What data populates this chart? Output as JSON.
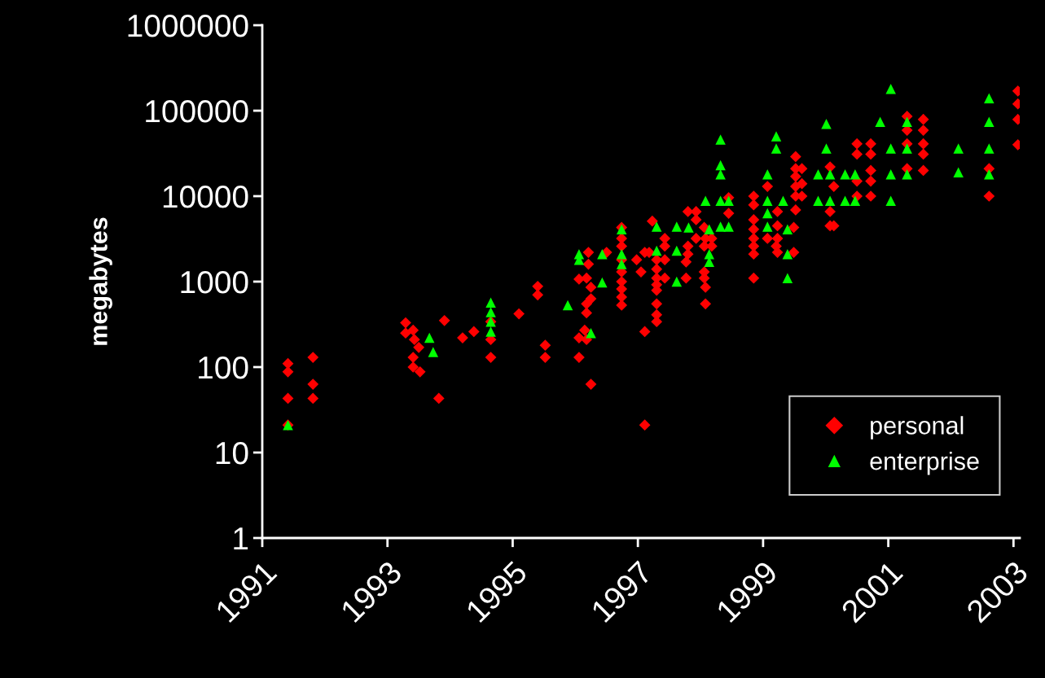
{
  "chart_data": {
    "type": "scatter",
    "ylabel": "megabytes",
    "log": "y",
    "legend": "bottom right",
    "grid": false,
    "xlim": [
      1991,
      2003.1
    ],
    "xticks": [
      1991,
      1993,
      1995,
      1997,
      1999,
      2001,
      2003
    ],
    "ylim": [
      1,
      1000000
    ],
    "yticks": [
      1,
      10,
      100,
      1000,
      10000,
      100000,
      1000000
    ],
    "series": [
      {
        "name": "personal",
        "color": "#ff0000",
        "marker": "diamond",
        "x": [
          1991.41,
          1991.41,
          1991.41,
          1991.41,
          1991.81,
          1991.81,
          1991.81,
          1993.29,
          1993.29,
          1993.41,
          1993.41,
          1993.41,
          1993.43,
          1993.5,
          1993.52,
          1993.82,
          1993.91,
          1994.2,
          1994.38,
          1994.65,
          1994.65,
          1994.65,
          1995.1,
          1995.4,
          1995.4,
          1995.52,
          1995.52,
          1996.06,
          1996.18,
          1996.21,
          1996.21,
          1996.25,
          1996.25,
          1996.18,
          1996.18,
          1996.15,
          1996.06,
          1996.18,
          1996.06,
          1996.25,
          1996.5,
          1996.74,
          1996.74,
          1996.74,
          1996.74,
          1996.74,
          1996.74,
          1996.74,
          1996.74,
          1996.74,
          1996.98,
          1997.05,
          1997.11,
          1997.18,
          1997.11,
          1997.11,
          1997.3,
          1997.3,
          1997.3,
          1997.3,
          1997.3,
          1997.3,
          1997.3,
          1997.3,
          1997.23,
          1997.43,
          1997.43,
          1997.43,
          1997.43,
          1997.8,
          1997.8,
          1997.8,
          1997.77,
          1997.77,
          1997.93,
          1997.93,
          1997.93,
          1998.06,
          1998.06,
          1998.06,
          1998.06,
          1998.08,
          1998.08,
          1998.08,
          1998.18,
          1998.18,
          1998.45,
          1998.45,
          1998.85,
          1998.85,
          1998.85,
          1998.85,
          1998.85,
          1998.85,
          1998.85,
          1998.85,
          1999.07,
          1999.07,
          1999.21,
          1999.23,
          1999.23,
          1999.23,
          1999.23,
          1999.49,
          1999.49,
          1999.52,
          1999.52,
          1999.52,
          1999.52,
          1999.52,
          1999.52,
          1999.62,
          1999.62,
          1999.62,
          2000.07,
          2000.07,
          2000.07,
          2000.13,
          2000.13,
          2000.5,
          2000.5,
          2000.5,
          2000.5,
          2000.72,
          2000.72,
          2000.72,
          2000.72,
          2000.72,
          2001.3,
          2001.3,
          2001.3,
          2001.3,
          2001.56,
          2001.56,
          2001.56,
          2001.56,
          2001.56,
          2002.61,
          2002.61,
          2003.07,
          2003.07,
          2003.07,
          2003.07
        ],
        "values": [
          110,
          88,
          43,
          21,
          130,
          63,
          43,
          330,
          250,
          270,
          130,
          100,
          210,
          170,
          88,
          43,
          350,
          220,
          260,
          340,
          210,
          130,
          420,
          880,
          700,
          180,
          130,
          1070,
          1100,
          2200,
          1600,
          860,
          630,
          550,
          430,
          270,
          220,
          210,
          130,
          63,
          2200,
          4300,
          3200,
          2600,
          1800,
          1300,
          1000,
          820,
          660,
          530,
          1800,
          1300,
          2200,
          2200,
          260,
          21,
          1800,
          1400,
          1100,
          920,
          790,
          550,
          410,
          340,
          5100,
          3200,
          2600,
          1800,
          1100,
          6600,
          2600,
          2100,
          1700,
          1100,
          6600,
          5300,
          3200,
          4300,
          2600,
          1300,
          1100,
          3200,
          860,
          550,
          3200,
          2600,
          9600,
          6300,
          10000,
          7900,
          5300,
          4100,
          3200,
          2600,
          2100,
          1100,
          13000,
          3200,
          2600,
          6600,
          4500,
          3200,
          2200,
          4300,
          2200,
          29000,
          21000,
          17000,
          13000,
          10000,
          6900,
          21000,
          14000,
          10000,
          22000,
          6600,
          4500,
          13000,
          4500,
          41000,
          31000,
          15000,
          10000,
          41000,
          31000,
          20000,
          15000,
          10000,
          86000,
          59000,
          41000,
          21000,
          79000,
          59000,
          41000,
          31000,
          20000,
          21000,
          10000,
          170000,
          120000,
          79000,
          40000
        ]
      },
      {
        "name": "enterprise",
        "color": "#00ff00",
        "marker": "triangle",
        "x": [
          1991.41,
          1993.67,
          1993.73,
          1994.65,
          1994.65,
          1994.65,
          1994.65,
          1995.88,
          1996.06,
          1996.06,
          1996.43,
          1996.43,
          1996.25,
          1996.74,
          1996.74,
          1996.74,
          1997.3,
          1997.3,
          1997.62,
          1997.62,
          1997.62,
          1997.81,
          1998.14,
          1998.14,
          1998.14,
          1998.08,
          1998.32,
          1998.32,
          1998.32,
          1998.32,
          1998.32,
          1998.45,
          1998.45,
          1999.07,
          1999.07,
          1999.07,
          1999.07,
          1999.21,
          1999.21,
          1999.32,
          1999.39,
          1999.39,
          1999.39,
          2000.01,
          2000.01,
          1999.88,
          1999.88,
          2000.07,
          2000.07,
          2000.31,
          2000.31,
          2000.47,
          2000.47,
          2000.87,
          2001.04,
          2001.04,
          2001.04,
          2001.04,
          2001.3,
          2001.3,
          2001.3,
          2002.12,
          2002.12,
          2002.61,
          2002.61,
          2002.61,
          2002.61
        ],
        "values": [
          21,
          220,
          150,
          570,
          440,
          340,
          260,
          530,
          2100,
          1800,
          2100,
          980,
          250,
          4100,
          2100,
          1600,
          4400,
          2300,
          4400,
          2300,
          1000,
          4300,
          4100,
          2100,
          1700,
          8800,
          46000,
          23000,
          18000,
          8800,
          4400,
          8800,
          4400,
          18000,
          8800,
          6300,
          4400,
          50000,
          36000,
          8800,
          4100,
          2100,
          1100,
          70000,
          36000,
          18000,
          8800,
          18000,
          8800,
          18000,
          8800,
          18000,
          8800,
          74000,
          180000,
          36000,
          18000,
          8800,
          74000,
          36000,
          18000,
          36000,
          19000,
          140000,
          74000,
          36000,
          18000
        ]
      }
    ]
  }
}
